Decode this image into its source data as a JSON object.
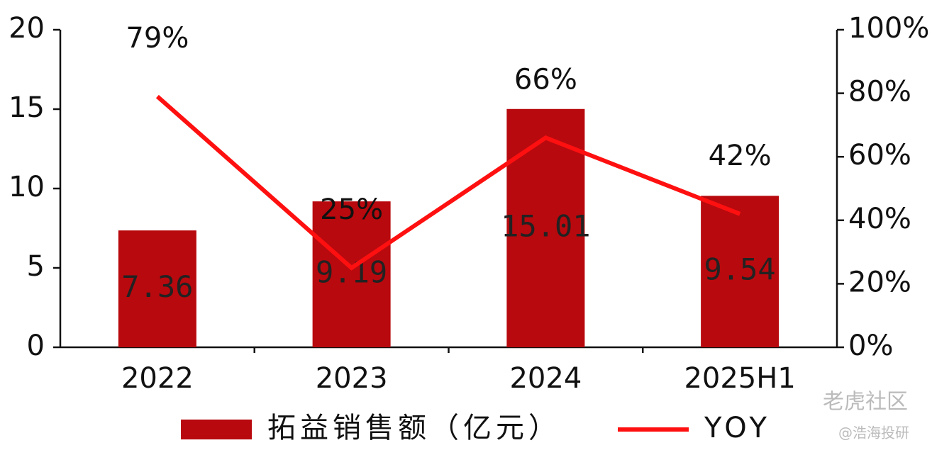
{
  "chart_data": {
    "type": "bar_line",
    "categories": [
      "2022",
      "2023",
      "2024",
      "2025H1"
    ],
    "series": [
      {
        "name": "拓益销售额（亿元）",
        "type": "bar",
        "color": "#b8090e",
        "values": [
          7.36,
          9.19,
          15.01,
          9.54
        ]
      },
      {
        "name": "YOY",
        "type": "line",
        "axis": "y2",
        "color": "#ff1010",
        "values": [
          79,
          25,
          66,
          42
        ],
        "value_labels": [
          "79%",
          "25%",
          "66%",
          "42%"
        ]
      }
    ],
    "ylim": [
      0,
      20
    ],
    "yticks": [
      0,
      5,
      10,
      15,
      20
    ],
    "y2lim": [
      0,
      100
    ],
    "y2ticks": [
      {
        "value": 0,
        "label": "0%"
      },
      {
        "value": 20,
        "label": "20%"
      },
      {
        "value": 40,
        "label": "40%"
      },
      {
        "value": 60,
        "label": "60%"
      },
      {
        "value": 80,
        "label": "80%"
      },
      {
        "value": 100,
        "label": "100%"
      }
    ],
    "grid": false,
    "legend": "bottom"
  },
  "watermark": [
    "老虎社区",
    "@浩海投研"
  ]
}
